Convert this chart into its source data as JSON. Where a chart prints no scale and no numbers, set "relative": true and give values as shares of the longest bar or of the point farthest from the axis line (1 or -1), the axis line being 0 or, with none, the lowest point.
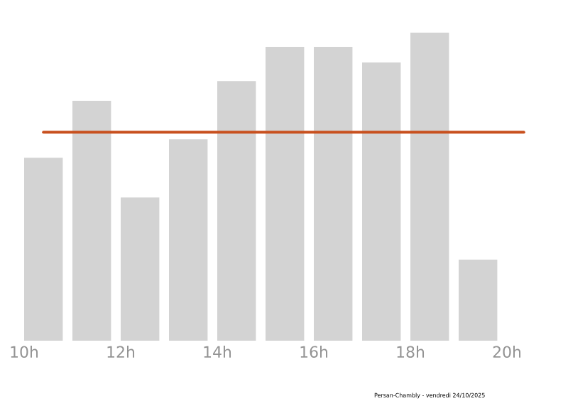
{
  "chart_data": {
    "type": "bar",
    "relative": true,
    "x": [
      10.4,
      11.4,
      12.4,
      13.4,
      14.4,
      15.4,
      16.4,
      17.4,
      18.4,
      19.4
    ],
    "values": [
      0.594,
      0.779,
      0.465,
      0.654,
      0.843,
      0.954,
      0.954,
      0.903,
      1,
      0.263
    ],
    "color": "#d3d3d3",
    "xlim": [
      10,
      20
    ],
    "xticks": [
      {
        "value": 10,
        "label": "10h"
      },
      {
        "value": 12,
        "label": "12h"
      },
      {
        "value": 14,
        "label": "14h"
      },
      {
        "value": 16,
        "label": "16h"
      },
      {
        "value": 18,
        "label": "18h"
      },
      {
        "value": 20,
        "label": "20h"
      }
    ],
    "ref_lines": [
      {
        "axis": "y",
        "value": 0.677,
        "color": "#c8501e"
      }
    ],
    "annotations": [
      "Persan-Chambly - vendredi 24/10/2025"
    ]
  }
}
